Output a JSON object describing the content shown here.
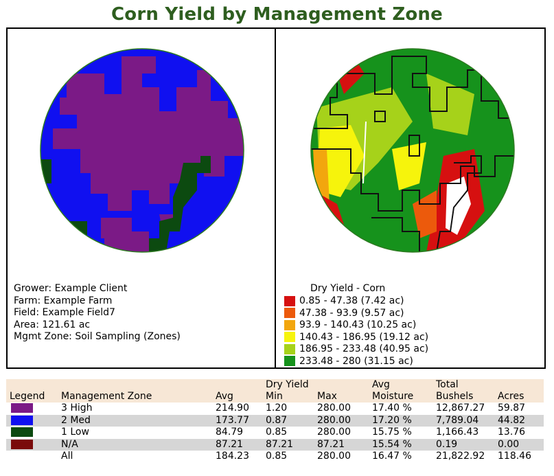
{
  "title": "Corn Yield by Management Zone",
  "field_info": {
    "grower": "Grower: Example Client",
    "farm": "Farm: Example Farm",
    "field": "Field: Example Field7",
    "area": "Area: 121.61 ac",
    "mgmt_zone": "Mgmt Zone: Soil Sampling (Zones)"
  },
  "yield_legend": {
    "title": "Dry Yield - Corn",
    "items": [
      {
        "label": "0.85 - 47.38 (7.42 ac)",
        "color": "#d61010"
      },
      {
        "label": "47.38 - 93.9 (9.57 ac)",
        "color": "#ec5a0c"
      },
      {
        "label": "93.9 - 140.43 (10.25 ac)",
        "color": "#f2a60e"
      },
      {
        "label": "140.43 - 186.95 (19.12 ac)",
        "color": "#f6f40c"
      },
      {
        "label": "186.95 - 233.48 (40.95 ac)",
        "color": "#a6d21a"
      },
      {
        "label": "233.48 - 280 (31.15 ac)",
        "color": "#16921c"
      }
    ]
  },
  "zone_colors": {
    "high": "#7b1a86",
    "med": "#1010f0",
    "low": "#0c4a10",
    "na": "#7a0a0a"
  },
  "table": {
    "group_headers": {
      "dry_yield": "Dry Yield",
      "avg": "Avg",
      "total": "Total"
    },
    "headers": [
      "Legend",
      "Management Zone",
      "Avg",
      "Min",
      "Max",
      "Moisture",
      "Bushels",
      "Acres"
    ],
    "rows": [
      {
        "swatch": "#7b1a86",
        "zone": "3 High",
        "avg": "214.90",
        "min": "1.20",
        "max": "280.00",
        "moisture": "17.40 %",
        "bushels": "12,867.27",
        "acres": "59.87"
      },
      {
        "swatch": "#1010f0",
        "zone": "2 Med",
        "avg": "173.77",
        "min": "0.87",
        "max": "280.00",
        "moisture": "17.20 %",
        "bushels": "7,789.04",
        "acres": "44.82"
      },
      {
        "swatch": "#0c4a10",
        "zone": "1 Low",
        "avg": "84.79",
        "min": "0.85",
        "max": "280.00",
        "moisture": "15.75 %",
        "bushels": "1,166.43",
        "acres": "13.76"
      },
      {
        "swatch": "#7a0a0a",
        "zone": "N/A",
        "avg": "87.21",
        "min": "87.21",
        "max": "87.21",
        "moisture": "15.54 %",
        "bushels": "0.19",
        "acres": "0.00"
      },
      {
        "swatch": "",
        "zone": "All",
        "avg": "184.23",
        "min": "0.85",
        "max": "280.00",
        "moisture": "16.47 %",
        "bushels": "21,822.92",
        "acres": "118.46"
      }
    ]
  }
}
